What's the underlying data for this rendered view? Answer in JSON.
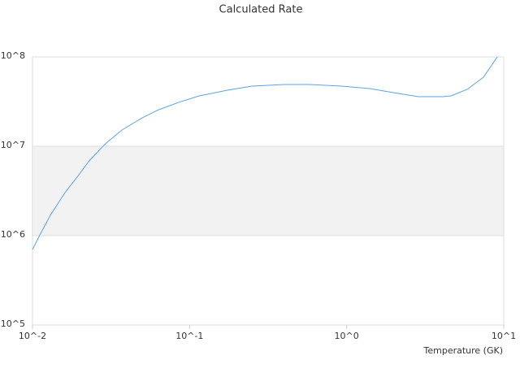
{
  "chart_data": {
    "type": "line",
    "title": "Calculated Rate",
    "x_label": "Temperature (GK)",
    "x": [
      0.01,
      0.01127,
      0.013,
      0.0161,
      0.0192,
      0.023,
      0.0292,
      0.0371,
      0.0499,
      0.0634,
      0.0853,
      0.115,
      0.174,
      0.249,
      0.401,
      0.574,
      0.925,
      1.4,
      2.13,
      2.86,
      4.09,
      4.61,
      5.85,
      7.43,
      9.1
    ],
    "series": [
      {
        "color": "#5ba3e6",
        "values": [
          700000,
          1060000,
          1690000,
          3030000,
          4500000,
          6900000,
          10700000,
          15200000,
          20800000,
          25600000,
          31000000,
          36600000,
          42400000,
          47100000,
          49100000,
          49100000,
          47100000,
          44200000,
          39000000,
          35900000,
          35900000,
          36600000,
          43300000,
          59300000,
          100000000
        ]
      }
    ],
    "x_log": true,
    "y_log": true,
    "xlim": [
      0.01,
      10
    ],
    "ylim": [
      100000,
      100000000
    ],
    "xticks": [
      {
        "value": 0.01,
        "label": "10^-2"
      },
      {
        "value": 0.1,
        "label": "10^-1"
      },
      {
        "value": 1,
        "label": "10^0"
      },
      {
        "value": 10,
        "label": "10^1"
      }
    ],
    "yticks": [
      {
        "value": 100000,
        "label": "10^5"
      },
      {
        "value": 1000000,
        "label": "10^6"
      },
      {
        "value": 10000000,
        "label": "10^7"
      },
      {
        "value": 100000000,
        "label": "10^8"
      }
    ]
  }
}
